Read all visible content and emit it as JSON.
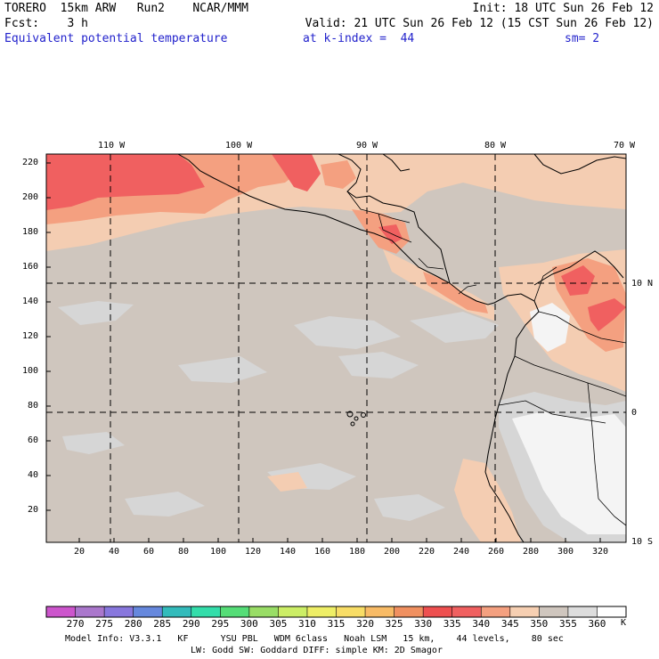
{
  "header": {
    "model": "TORERO  15km ARW   Run2    NCAR/MMM",
    "init": "Init: 18 UTC Sun 26 Feb 12",
    "fcst": "Fcst:    3 h",
    "valid": "Valid: 21 UTC Sun 26 Feb 12 (15 CST Sun 26 Feb 12)",
    "field": "Equivalent potential temperature",
    "level": "at k-index =  44",
    "smooth": "sm= 2"
  },
  "top_lon_labels": [
    "110 W",
    "100 W",
    "90 W",
    "80 W",
    "70 W"
  ],
  "right_lat_labels": [
    "10 N",
    "0",
    "10 S"
  ],
  "y_ticks": [
    "220",
    "200",
    "180",
    "160",
    "140",
    "120",
    "100",
    "80",
    "60",
    "40",
    "20"
  ],
  "x_ticks": [
    "20",
    "40",
    "60",
    "80",
    "100",
    "120",
    "140",
    "160",
    "180",
    "200",
    "220",
    "240",
    "260",
    "280",
    "300",
    "320"
  ],
  "colorbar": {
    "labels": [
      "270",
      "275",
      "280",
      "285",
      "290",
      "295",
      "300",
      "305",
      "310",
      "315",
      "320",
      "325",
      "330",
      "335",
      "340",
      "345",
      "350",
      "355",
      "360"
    ],
    "unit": "K",
    "colors": [
      "#cc55cc",
      "#aa77cc",
      "#8877dd",
      "#6688dd",
      "#33bbbb",
      "#33ddaa",
      "#55dd77",
      "#99dd66",
      "#ccee66",
      "#eeee66",
      "#f8dd66",
      "#f8bb66",
      "#f09060",
      "#ee5050",
      "#f06060",
      "#f4a080",
      "#f6cfb2",
      "#cfc6be",
      "#dddddd",
      "#ffffff"
    ]
  },
  "footer": {
    "line1": "Model Info: V3.3.1   KF      YSU PBL   WDM 6class   Noah LSM   15 km,    44 levels,    80 sec",
    "line2": "LW: Godd SW: Goddard DIFF: simple KM: 2D Smagor"
  },
  "field_colors": {
    "base": "#cfc6be",
    "light_gray": "#d6d6d6",
    "white": "#f4f4f4",
    "peach": "#f4cdb2",
    "salmon": "#f4a080",
    "red": "#f06060"
  }
}
